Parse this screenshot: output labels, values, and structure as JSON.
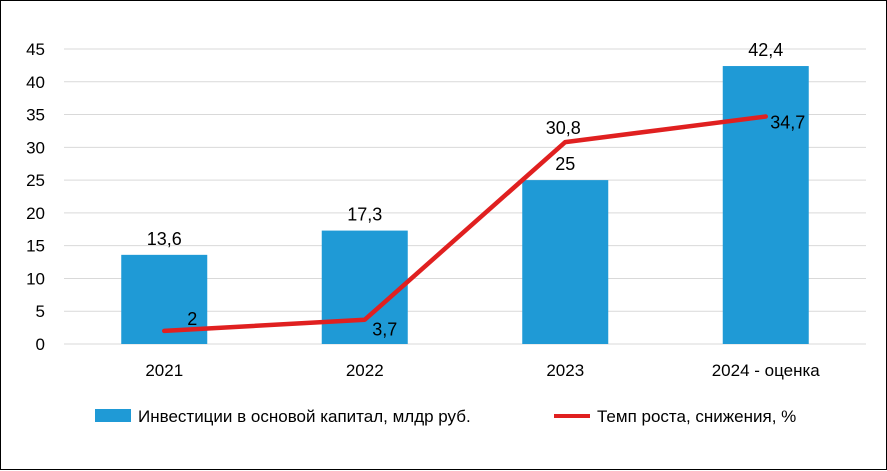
{
  "chart_data": {
    "type": "bar",
    "categories": [
      "2021",
      "2022",
      "2023",
      "2024 - оценка"
    ],
    "series": [
      {
        "name": "Инвестиции в основой капитал, млдр руб.",
        "type": "bar",
        "color": "#1f9ad6",
        "values": [
          13.6,
          17.3,
          25,
          42.4
        ],
        "labels": [
          "13,6",
          "17,3",
          "25",
          "42,4"
        ]
      },
      {
        "name": "Темп роста, снижения, %",
        "type": "line",
        "color": "#e02020",
        "values": [
          2,
          3.7,
          30.8,
          34.7
        ],
        "labels": [
          "2",
          "3,7",
          "30,8",
          "34,7"
        ]
      }
    ],
    "y_ticks": [
      "0",
      "5",
      "10",
      "15",
      "20",
      "25",
      "30",
      "35",
      "40",
      "45"
    ],
    "ylim": [
      0,
      45
    ],
    "grid": true,
    "legend_position": "bottom"
  }
}
